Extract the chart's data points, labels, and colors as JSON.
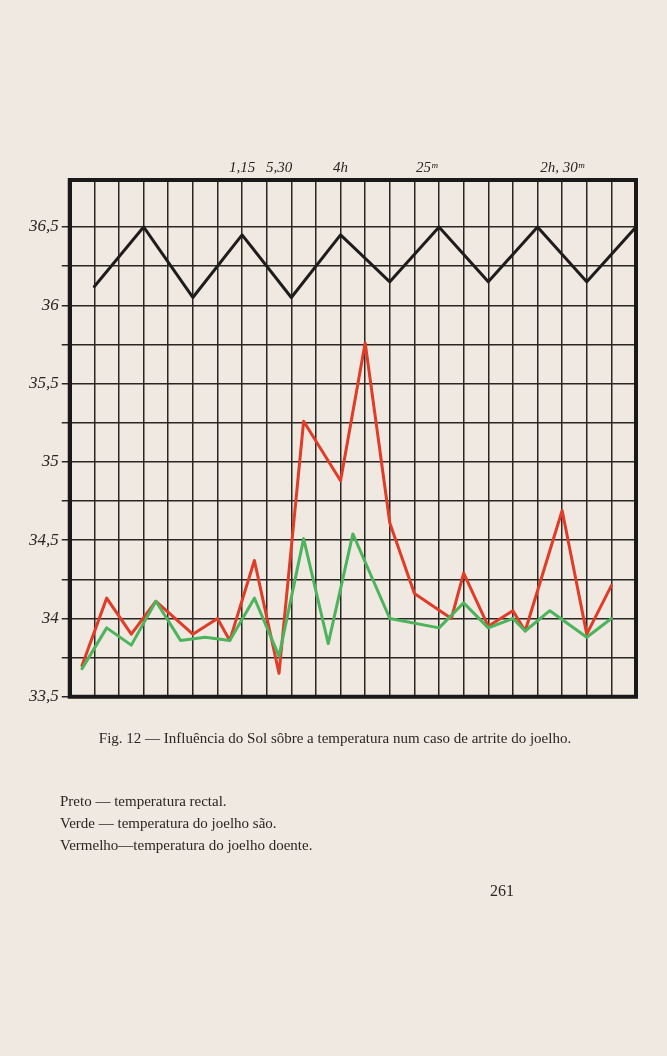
{
  "chart_data": {
    "type": "line",
    "title": "Fig. 12 — Influência do Sol sôbre a temperatura num caso de artrite do joelho.",
    "categories": [
      null,
      null,
      null,
      null,
      null,
      null,
      null,
      null,
      null,
      null,
      null,
      null,
      null,
      null,
      "1,15",
      null,
      null,
      "5,30",
      null,
      null,
      null,
      null,
      "4h",
      null,
      null,
      null,
      null,
      null,
      null,
      "25ᵐ",
      null,
      null,
      null,
      null,
      null,
      null,
      null,
      null,
      null,
      null,
      "2h, 30ᵐ",
      null,
      null,
      null,
      null,
      null,
      null
    ],
    "ylim": [
      33.5,
      36.8
    ],
    "yticks": [
      {
        "value": 33.5,
        "label": "33,5"
      },
      {
        "value": 33.75,
        "label": null
      },
      34,
      {
        "value": 34.25,
        "label": null
      },
      {
        "value": 34.5,
        "label": "34,5"
      },
      {
        "value": 34.75,
        "label": null
      },
      35,
      {
        "value": 35.25,
        "label": null
      },
      {
        "value": 35.5,
        "label": "35,5"
      },
      {
        "value": 35.75,
        "label": null
      },
      36,
      {
        "value": 36.25,
        "label": null
      },
      {
        "value": 36.5,
        "label": "36,5"
      }
    ],
    "grid": true,
    "marker": "none",
    "line_style": "solid",
    "series": [
      {
        "color": "#1e1c1c",
        "values": [
          null,
          null,
          36.12,
          null,
          null,
          null,
          36.5,
          null,
          null,
          null,
          36.05,
          null,
          null,
          null,
          36.45,
          null,
          null,
          null,
          36.05,
          null,
          null,
          null,
          36.45,
          null,
          null,
          null,
          36.15,
          null,
          null,
          null,
          36.5,
          null,
          null,
          null,
          36.15,
          null,
          null,
          null,
          36.5,
          null,
          null,
          null,
          36.15,
          null,
          null,
          null,
          36.5
        ]
      },
      {
        "color": "#4cb45c",
        "values": [
          null,
          33.68,
          null,
          33.94,
          null,
          33.83,
          null,
          34.11,
          null,
          33.86,
          null,
          33.88,
          null,
          33.86,
          null,
          34.13,
          null,
          33.76,
          null,
          34.51,
          null,
          33.84,
          null,
          34.54,
          null,
          null,
          34.0,
          null,
          null,
          null,
          33.94,
          null,
          34.1,
          null,
          33.94,
          null,
          34.0,
          33.92,
          null,
          34.05,
          null,
          null,
          33.88,
          null,
          34.0,
          null,
          null
        ]
      },
      {
        "color": "#e03c28",
        "values": [
          null,
          33.7,
          null,
          34.13,
          null,
          33.9,
          null,
          34.11,
          null,
          null,
          33.9,
          null,
          34.0,
          33.86,
          null,
          34.37,
          null,
          33.65,
          null,
          35.26,
          null,
          null,
          34.88,
          null,
          35.76,
          null,
          34.61,
          null,
          34.16,
          null,
          null,
          34.0,
          34.29,
          null,
          33.95,
          null,
          34.05,
          33.92,
          null,
          null,
          34.69,
          null,
          33.9,
          null,
          34.21,
          null,
          null
        ]
      }
    ],
    "annotations": [
      "Preto — temperatura rectal.",
      "Verde — temperatura do joelho são.",
      "Vermelho—temperatura do joelho doente.",
      "261"
    ]
  }
}
